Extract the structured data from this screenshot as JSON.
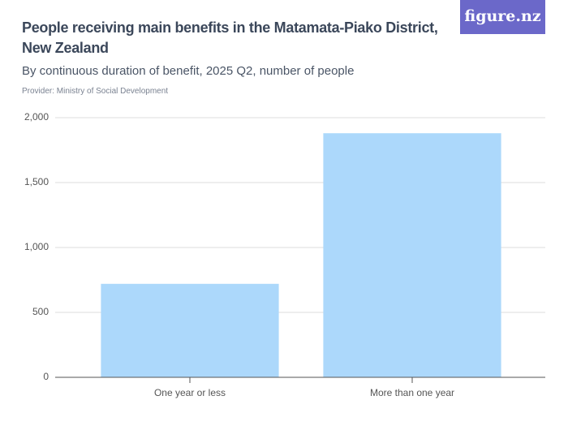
{
  "chart_data": {
    "type": "bar",
    "title": "People receiving main benefits in the Matamata-Piako District, New Zealand",
    "subtitle": "By continuous duration of benefit, 2025 Q2, number of people",
    "provider": "Provider: Ministry of Social Development",
    "brand": "figure.nz",
    "categories": [
      "One year or less",
      "More than one year"
    ],
    "values": [
      720,
      1880
    ],
    "color": "#acd8fb",
    "ylim": [
      0,
      2000
    ],
    "yticks": [
      0,
      500,
      {
        "value": 1000,
        "label": "1,000"
      },
      {
        "value": 1500,
        "label": "1,500"
      },
      {
        "value": 2000,
        "label": "2,000"
      }
    ],
    "grid": true
  }
}
